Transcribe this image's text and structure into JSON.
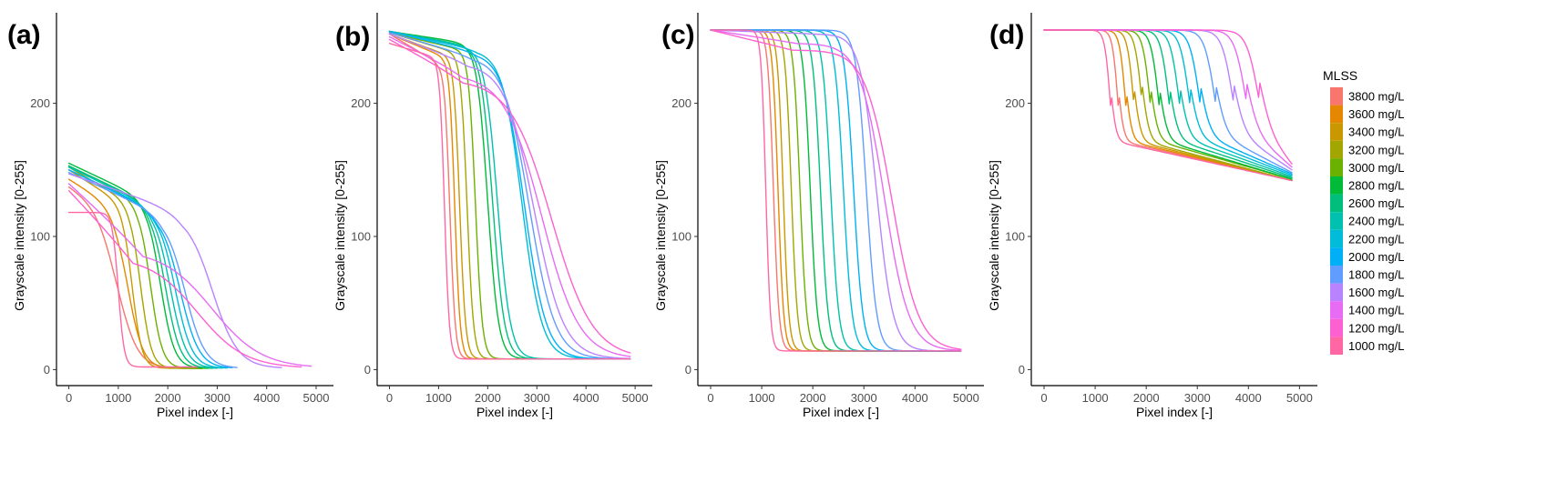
{
  "chart_data": [
    {
      "panel": "(a)",
      "type": "line",
      "xlabel": "Pixel index [-]",
      "ylabel": "Grayscale intensity [0-255]",
      "xlim": [
        -250,
        5350
      ],
      "ylim": [
        -12,
        268
      ],
      "xticks": [
        0,
        1000,
        2000,
        3000,
        4000,
        5000
      ],
      "yticks": [
        0,
        100,
        200
      ],
      "series": [
        {
          "name": "3800 mg/L",
          "color": "#F8766D",
          "start": 138,
          "plateau": 118,
          "plateau_end": 900,
          "drop_x": 1000,
          "width": 200,
          "end": 1,
          "x_end": 2700
        },
        {
          "name": "3600 mg/L",
          "color": "#E58700",
          "start": 143,
          "plateau": 120,
          "plateau_end": 1000,
          "drop_x": 1200,
          "width": 150,
          "end": 1,
          "x_end": 2700
        },
        {
          "name": "3400 mg/L",
          "color": "#C99800",
          "start": 150,
          "plateau": 124,
          "plateau_end": 1100,
          "drop_x": 1280,
          "width": 100,
          "end": 1,
          "x_end": 2700
        },
        {
          "name": "3200 mg/L",
          "color": "#A3A500",
          "start": 152,
          "plateau": 125,
          "plateau_end": 1250,
          "drop_x": 1450,
          "width": 110,
          "end": 1,
          "x_end": 2700
        },
        {
          "name": "3000 mg/L",
          "color": "#6BB100",
          "start": 153,
          "plateau": 126,
          "plateau_end": 1400,
          "drop_x": 1650,
          "width": 120,
          "end": 1,
          "x_end": 2800
        },
        {
          "name": "2800 mg/L",
          "color": "#00BA38",
          "start": 155,
          "plateau": 128,
          "plateau_end": 1550,
          "drop_x": 1850,
          "width": 140,
          "end": 1,
          "x_end": 2900
        },
        {
          "name": "2600 mg/L",
          "color": "#00BF7D",
          "start": 153,
          "plateau": 124,
          "plateau_end": 1650,
          "drop_x": 1950,
          "width": 150,
          "end": 1,
          "x_end": 3000
        },
        {
          "name": "2400 mg/L",
          "color": "#00C0AF",
          "start": 152,
          "plateau": 122,
          "plateau_end": 1700,
          "drop_x": 2050,
          "width": 160,
          "end": 1,
          "x_end": 3100
        },
        {
          "name": "2200 mg/L",
          "color": "#00BCD8",
          "start": 150,
          "plateau": 120,
          "plateau_end": 1750,
          "drop_x": 2150,
          "width": 170,
          "end": 1,
          "x_end": 3200
        },
        {
          "name": "2000 mg/L",
          "color": "#00B0F6",
          "start": 150,
          "plateau": 118,
          "plateau_end": 1800,
          "drop_x": 2250,
          "width": 190,
          "end": 1,
          "x_end": 3300
        },
        {
          "name": "1800 mg/L",
          "color": "#619CFF",
          "start": 148,
          "plateau": 116,
          "plateau_end": 1900,
          "drop_x": 2350,
          "width": 200,
          "end": 1,
          "x_end": 3400
        },
        {
          "name": "1600 mg/L",
          "color": "#B983FF",
          "start": 147,
          "plateau": 118,
          "plateau_end": 2300,
          "drop_x": 2900,
          "width": 260,
          "end": 1,
          "x_end": 4300
        },
        {
          "name": "1400 mg/L",
          "color": "#E76BF3",
          "start": 140,
          "plateau": 90,
          "plateau_end": 1500,
          "drop_x": 2900,
          "width": 500,
          "end": 1,
          "x_end": 4900
        },
        {
          "name": "1200 mg/L",
          "color": "#FD61D1",
          "start": 135,
          "plateau": 85,
          "plateau_end": 1300,
          "drop_x": 2600,
          "width": 480,
          "end": 1,
          "x_end": 4700
        },
        {
          "name": "1000 mg/L",
          "color": "#FF67A4",
          "start": 118,
          "plateau": 118,
          "plateau_end": 900,
          "drop_x": 1000,
          "width": 60,
          "end": 2,
          "x_end": 2600
        }
      ]
    },
    {
      "panel": "(b)",
      "type": "line",
      "xlabel": "Pixel index [-]",
      "ylabel": "Grayscale intensity [0-255]",
      "xlim": [
        -250,
        5350
      ],
      "ylim": [
        -12,
        268
      ],
      "xticks": [
        0,
        1000,
        2000,
        3000,
        4000,
        5000
      ],
      "yticks": [
        0,
        100,
        200
      ],
      "series": [
        {
          "name": "3800 mg/L",
          "color": "#F8766D",
          "start": 252,
          "plateau": 230,
          "plateau_end": 1000,
          "drop_x": 1230,
          "width": 55,
          "end": 8,
          "x_end": 4900
        },
        {
          "name": "3600 mg/L",
          "color": "#E58700",
          "start": 252,
          "plateau": 235,
          "plateau_end": 1100,
          "drop_x": 1330,
          "width": 55,
          "end": 8,
          "x_end": 4900
        },
        {
          "name": "3400 mg/L",
          "color": "#C99800",
          "start": 252,
          "plateau": 236,
          "plateau_end": 1200,
          "drop_x": 1430,
          "width": 60,
          "end": 8,
          "x_end": 4900
        },
        {
          "name": "3200 mg/L",
          "color": "#A3A500",
          "start": 253,
          "plateau": 238,
          "plateau_end": 1350,
          "drop_x": 1580,
          "width": 65,
          "end": 8,
          "x_end": 4900
        },
        {
          "name": "3000 mg/L",
          "color": "#6BB100",
          "start": 253,
          "plateau": 240,
          "plateau_end": 1500,
          "drop_x": 1750,
          "width": 70,
          "end": 8,
          "x_end": 4900
        },
        {
          "name": "2800 mg/L",
          "color": "#00BA38",
          "start": 254,
          "plateau": 245,
          "plateau_end": 1600,
          "drop_x": 2000,
          "width": 110,
          "end": 8,
          "x_end": 4900
        },
        {
          "name": "2600 mg/L",
          "color": "#00BF7D",
          "start": 254,
          "plateau": 243,
          "plateau_end": 1650,
          "drop_x": 2100,
          "width": 120,
          "end": 8,
          "x_end": 4900
        },
        {
          "name": "2400 mg/L",
          "color": "#00C0AF",
          "start": 254,
          "plateau": 242,
          "plateau_end": 1700,
          "drop_x": 2200,
          "width": 130,
          "end": 8,
          "x_end": 4900
        },
        {
          "name": "2200 mg/L",
          "color": "#00BCD8",
          "start": 254,
          "plateau": 240,
          "plateau_end": 1800,
          "drop_x": 2700,
          "width": 200,
          "end": 8,
          "x_end": 4900
        },
        {
          "name": "2000 mg/L",
          "color": "#00B0F6",
          "start": 254,
          "plateau": 238,
          "plateau_end": 1800,
          "drop_x": 2750,
          "width": 220,
          "end": 8,
          "x_end": 4900
        },
        {
          "name": "1800 mg/L",
          "color": "#619CFF",
          "start": 253,
          "plateau": 235,
          "plateau_end": 1700,
          "drop_x": 2850,
          "width": 260,
          "end": 8,
          "x_end": 4900
        },
        {
          "name": "1600 mg/L",
          "color": "#B983FF",
          "start": 252,
          "plateau": 230,
          "plateau_end": 1600,
          "drop_x": 2950,
          "width": 300,
          "end": 8,
          "x_end": 4900
        },
        {
          "name": "1400 mg/L",
          "color": "#E76BF3",
          "start": 250,
          "plateau": 222,
          "plateau_end": 1500,
          "drop_x": 3100,
          "width": 380,
          "end": 8,
          "x_end": 4900
        },
        {
          "name": "1200 mg/L",
          "color": "#FD61D1",
          "start": 248,
          "plateau": 218,
          "plateau_end": 1500,
          "drop_x": 3300,
          "width": 420,
          "end": 8,
          "x_end": 4900
        },
        {
          "name": "1000 mg/L",
          "color": "#FF67A4",
          "start": 245,
          "plateau": 235,
          "plateau_end": 900,
          "drop_x": 1120,
          "width": 50,
          "end": 8,
          "x_end": 4900
        }
      ]
    },
    {
      "panel": "(c)",
      "type": "line",
      "xlabel": "Pixel index [-]",
      "ylabel": "Grayscale intensity [0-255]",
      "xlim": [
        -250,
        5350
      ],
      "ylim": [
        -12,
        268
      ],
      "xticks": [
        0,
        1000,
        2000,
        3000,
        4000,
        5000
      ],
      "yticks": [
        0,
        100,
        200
      ],
      "series": [
        {
          "name": "3800 mg/L",
          "color": "#F8766D",
          "start": 255,
          "plateau": 255,
          "plateau_end": 1000,
          "drop_x": 1230,
          "width": 55,
          "end": 14,
          "x_end": 4900
        },
        {
          "name": "3600 mg/L",
          "color": "#E58700",
          "start": 255,
          "plateau": 255,
          "plateau_end": 1100,
          "drop_x": 1320,
          "width": 55,
          "end": 14,
          "x_end": 4900
        },
        {
          "name": "3400 mg/L",
          "color": "#C99800",
          "start": 255,
          "plateau": 255,
          "plateau_end": 1200,
          "drop_x": 1420,
          "width": 55,
          "end": 14,
          "x_end": 4900
        },
        {
          "name": "3200 mg/L",
          "color": "#A3A500",
          "start": 255,
          "plateau": 255,
          "plateau_end": 1350,
          "drop_x": 1580,
          "width": 60,
          "end": 14,
          "x_end": 4900
        },
        {
          "name": "3000 mg/L",
          "color": "#6BB100",
          "start": 255,
          "plateau": 255,
          "plateau_end": 1500,
          "drop_x": 1750,
          "width": 65,
          "end": 14,
          "x_end": 4900
        },
        {
          "name": "2800 mg/L",
          "color": "#00BA38",
          "start": 255,
          "plateau": 255,
          "plateau_end": 1700,
          "drop_x": 1950,
          "width": 70,
          "end": 14,
          "x_end": 4900
        },
        {
          "name": "2600 mg/L",
          "color": "#00BF7D",
          "start": 255,
          "plateau": 255,
          "plateau_end": 1900,
          "drop_x": 2150,
          "width": 75,
          "end": 14,
          "x_end": 4900
        },
        {
          "name": "2400 mg/L",
          "color": "#00C0AF",
          "start": 255,
          "plateau": 255,
          "plateau_end": 2100,
          "drop_x": 2350,
          "width": 80,
          "end": 14,
          "x_end": 4900
        },
        {
          "name": "2200 mg/L",
          "color": "#00BCD8",
          "start": 255,
          "plateau": 255,
          "plateau_end": 2300,
          "drop_x": 2600,
          "width": 85,
          "end": 14,
          "x_end": 4900
        },
        {
          "name": "2000 mg/L",
          "color": "#00B0F6",
          "start": 255,
          "plateau": 255,
          "plateau_end": 2500,
          "drop_x": 2800,
          "width": 90,
          "end": 14,
          "x_end": 4900
        },
        {
          "name": "1800 mg/L",
          "color": "#619CFF",
          "start": 255,
          "plateau": 255,
          "plateau_end": 2600,
          "drop_x": 3050,
          "width": 100,
          "end": 14,
          "x_end": 4900
        },
        {
          "name": "1600 mg/L",
          "color": "#B983FF",
          "start": 255,
          "plateau": 252,
          "plateau_end": 2100,
          "drop_x": 3250,
          "width": 160,
          "end": 14,
          "x_end": 4900
        },
        {
          "name": "1400 mg/L",
          "color": "#E76BF3",
          "start": 255,
          "plateau": 245,
          "plateau_end": 1700,
          "drop_x": 3400,
          "width": 240,
          "end": 14,
          "x_end": 4900
        },
        {
          "name": "1200 mg/L",
          "color": "#FD61D1",
          "start": 255,
          "plateau": 240,
          "plateau_end": 1600,
          "drop_x": 3550,
          "width": 260,
          "end": 14,
          "x_end": 4900
        },
        {
          "name": "1000 mg/L",
          "color": "#FF67A4",
          "start": 255,
          "plateau": 255,
          "plateau_end": 900,
          "drop_x": 1080,
          "width": 45,
          "end": 14,
          "x_end": 4900
        }
      ]
    },
    {
      "panel": "(d)",
      "type": "line",
      "xlabel": "Pixel index [-]",
      "ylabel": "Grayscale intensity [0-255]",
      "xlim": [
        -250,
        5350
      ],
      "ylim": [
        -12,
        268
      ],
      "xticks": [
        0,
        1000,
        2000,
        3000,
        4000,
        5000
      ],
      "yticks": [
        0,
        100,
        200
      ],
      "series": [
        {
          "name": "3800 mg/L",
          "color": "#F8766D",
          "start": 255,
          "plateau": 255,
          "plateau_end": 1300,
          "drop_x": 1450,
          "width": 55,
          "end": 142,
          "x_end": 4850
        },
        {
          "name": "3600 mg/L",
          "color": "#E58700",
          "start": 255,
          "plateau": 255,
          "plateau_end": 1450,
          "drop_x": 1600,
          "width": 60,
          "end": 142,
          "x_end": 4850
        },
        {
          "name": "3400 mg/L",
          "color": "#C99800",
          "start": 255,
          "plateau": 255,
          "plateau_end": 1600,
          "drop_x": 1760,
          "width": 65,
          "end": 142,
          "x_end": 4850
        },
        {
          "name": "3200 mg/L",
          "color": "#A3A500",
          "start": 255,
          "plateau": 255,
          "plateau_end": 1750,
          "drop_x": 1920,
          "width": 70,
          "end": 142,
          "x_end": 4850
        },
        {
          "name": "3000 mg/L",
          "color": "#6BB100",
          "start": 255,
          "plateau": 255,
          "plateau_end": 1900,
          "drop_x": 2080,
          "width": 75,
          "end": 143,
          "x_end": 4850
        },
        {
          "name": "2800 mg/L",
          "color": "#00BA38",
          "start": 255,
          "plateau": 255,
          "plateau_end": 2050,
          "drop_x": 2250,
          "width": 80,
          "end": 143,
          "x_end": 4850
        },
        {
          "name": "2600 mg/L",
          "color": "#00BF7D",
          "start": 255,
          "plateau": 255,
          "plateau_end": 2250,
          "drop_x": 2450,
          "width": 85,
          "end": 144,
          "x_end": 4850
        },
        {
          "name": "2400 mg/L",
          "color": "#00C0AF",
          "start": 255,
          "plateau": 255,
          "plateau_end": 2450,
          "drop_x": 2650,
          "width": 90,
          "end": 145,
          "x_end": 4850
        },
        {
          "name": "2200 mg/L",
          "color": "#00BCD8",
          "start": 255,
          "plateau": 255,
          "plateau_end": 2650,
          "drop_x": 2850,
          "width": 95,
          "end": 146,
          "x_end": 4850
        },
        {
          "name": "2000 mg/L",
          "color": "#00B0F6",
          "start": 255,
          "plateau": 255,
          "plateau_end": 2850,
          "drop_x": 3050,
          "width": 100,
          "end": 147,
          "x_end": 4850
        },
        {
          "name": "1800 mg/L",
          "color": "#619CFF",
          "start": 255,
          "plateau": 255,
          "plateau_end": 3100,
          "drop_x": 3350,
          "width": 105,
          "end": 148,
          "x_end": 4850
        },
        {
          "name": "1600 mg/L",
          "color": "#B983FF",
          "start": 255,
          "plateau": 255,
          "plateau_end": 3450,
          "drop_x": 3700,
          "width": 110,
          "end": 150,
          "x_end": 4850
        },
        {
          "name": "1400 mg/L",
          "color": "#E76BF3",
          "start": 255,
          "plateau": 255,
          "plateau_end": 3700,
          "drop_x": 3950,
          "width": 115,
          "end": 152,
          "x_end": 4850
        },
        {
          "name": "1200 mg/L",
          "color": "#FD61D1",
          "start": 255,
          "plateau": 255,
          "plateau_end": 3900,
          "drop_x": 4200,
          "width": 120,
          "end": 154,
          "x_end": 4850
        },
        {
          "name": "1000 mg/L",
          "color": "#FF67A4",
          "start": 255,
          "plateau": 255,
          "plateau_end": 1150,
          "drop_x": 1300,
          "width": 55,
          "end": 142,
          "x_end": 4850
        }
      ]
    }
  ],
  "legend": {
    "title": "MLSS",
    "placement": "right",
    "entries": [
      {
        "label": "3800 mg/L",
        "color": "#F8766D"
      },
      {
        "label": "3600 mg/L",
        "color": "#E58700"
      },
      {
        "label": "3400 mg/L",
        "color": "#C99800"
      },
      {
        "label": "3200 mg/L",
        "color": "#A3A500"
      },
      {
        "label": "3000 mg/L",
        "color": "#6BB100"
      },
      {
        "label": "2800 mg/L",
        "color": "#00BA38"
      },
      {
        "label": "2600 mg/L",
        "color": "#00BF7D"
      },
      {
        "label": "2400 mg/L",
        "color": "#00C0AF"
      },
      {
        "label": "2200 mg/L",
        "color": "#00BCD8"
      },
      {
        "label": "2000 mg/L",
        "color": "#00B0F6"
      },
      {
        "label": "1800 mg/L",
        "color": "#619CFF"
      },
      {
        "label": "1600 mg/L",
        "color": "#B983FF"
      },
      {
        "label": "1400 mg/L",
        "color": "#E76BF3"
      },
      {
        "label": "1200 mg/L",
        "color": "#FD61D1"
      },
      {
        "label": "1000 mg/L",
        "color": "#FF67A4"
      }
    ]
  }
}
